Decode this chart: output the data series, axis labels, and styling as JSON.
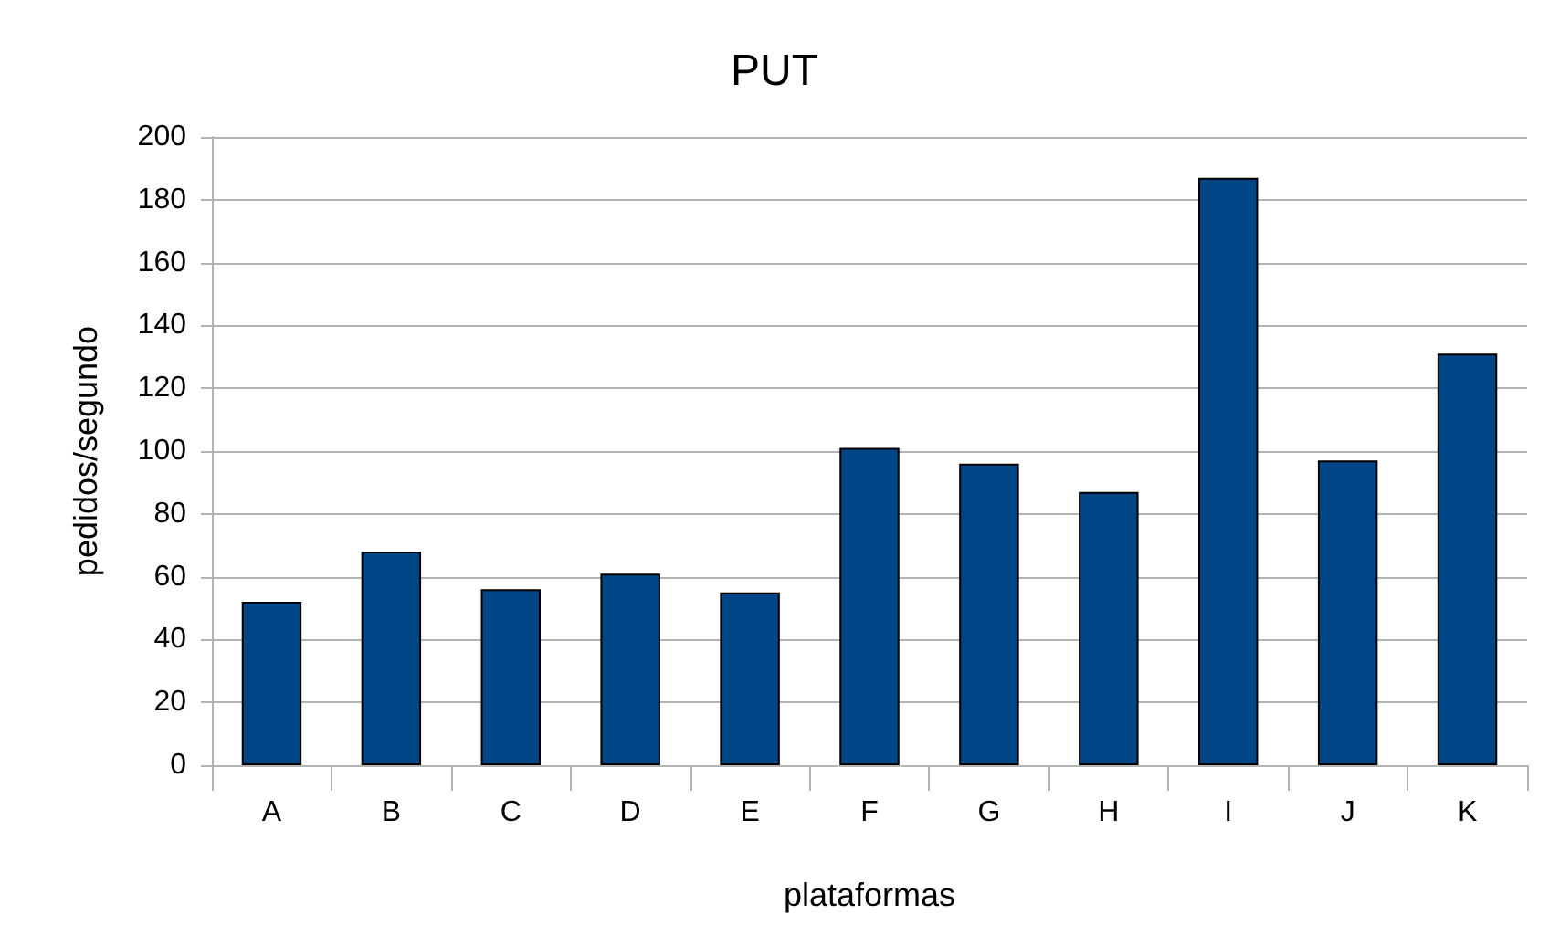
{
  "chart_data": {
    "type": "bar",
    "title": "PUT",
    "xlabel": "plataformas",
    "ylabel": "pedidos/segundo",
    "categories": [
      "A",
      "B",
      "C",
      "D",
      "E",
      "F",
      "G",
      "H",
      "I",
      "J",
      "K"
    ],
    "values": [
      52,
      68,
      56,
      61,
      55,
      101,
      96,
      87,
      187,
      97,
      131
    ],
    "color": "#004586",
    "ylim": [
      0,
      200
    ],
    "yticks": [
      0,
      20,
      40,
      60,
      80,
      100,
      120,
      140,
      160,
      180,
      200
    ],
    "grid": "y"
  }
}
